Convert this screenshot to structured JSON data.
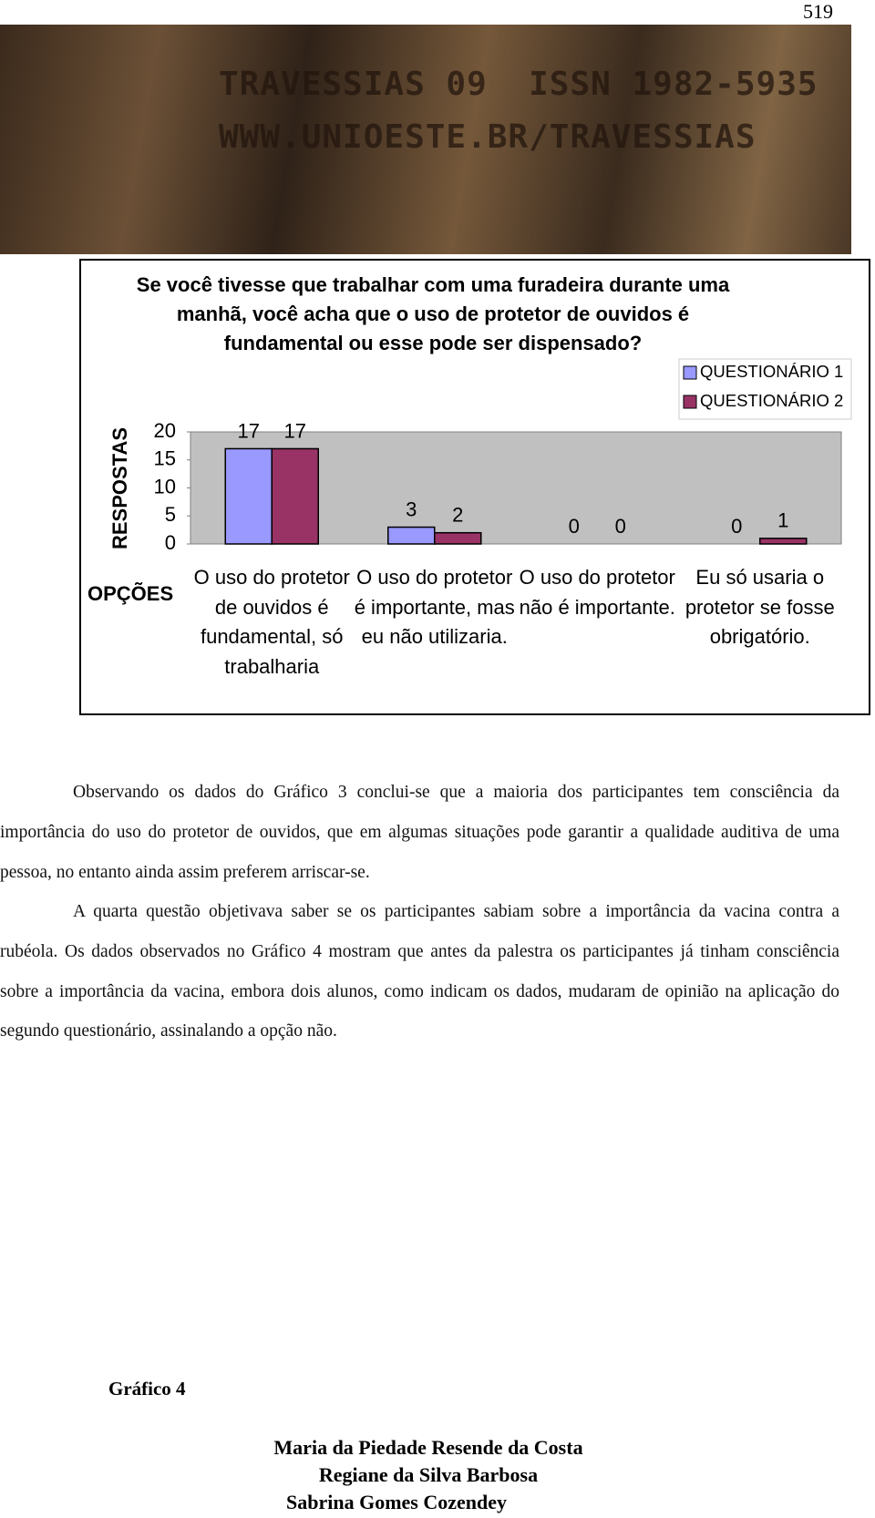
{
  "page_number": "519",
  "header": {
    "lines": [
      "TRAVESSIAS 09  ISSN 1982-5935",
      "WWW.UNIOESTE.BR/TRAVESSIAS"
    ]
  },
  "chart_data": {
    "type": "bar",
    "title": "Se você tivesse que trabalhar com uma furadeira durante uma manhã, você acha que o uso de protetor de ouvidos é fundamental ou esse pode ser dispensado?",
    "ylabel": "RESPOSTAS",
    "xlabel": "OPÇÕES",
    "categories": [
      "O uso do protetor de ouvidos é fundamental, só trabalharia",
      "O uso do protetor é importante, mas eu não utilizaria.",
      "O uso do protetor não é importante.",
      "Eu só usaria o protetor se fosse obrigatório."
    ],
    "series": [
      {
        "name": "QUESTIONÁRIO 1",
        "color": "#9999ff",
        "values": [
          17,
          3,
          0,
          0
        ]
      },
      {
        "name": "QUESTIONÁRIO 2",
        "color": "#993366",
        "values": [
          17,
          2,
          0,
          1
        ]
      }
    ],
    "ylim": [
      0,
      20
    ],
    "yticks": [
      0,
      5,
      10,
      15,
      20
    ],
    "grid": false,
    "legend": "top-right"
  },
  "paragraphs": [
    "Observando os dados do Gráfico 3 conclui-se que a maioria dos participantes tem consciência da importância do uso do protetor de ouvidos, que em algumas situações pode garantir a qualidade auditiva de uma pessoa, no entanto ainda assim preferem arriscar-se.",
    "A quarta questão objetivava saber se os participantes sabiam sobre a importância da vacina contra a rubéola. Os dados observados no Gráfico 4 mostram que antes da palestra os participantes já tinham consciência sobre a importância da vacina, embora dois alunos, como indicam os dados, mudaram  de opinião na aplicação do segundo questionário, assinalando a opção não."
  ],
  "caption": "Gráfico 4",
  "authors": [
    "Maria da Piedade Resende da Costa",
    "Regiane da Silva Barbosa",
    "Sabrina Gomes Cozendey"
  ]
}
